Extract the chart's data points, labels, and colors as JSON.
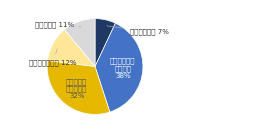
{
  "slices": [
    {
      "label": "把握している 7%",
      "value": 7,
      "color": "#1f3864"
    },
    {
      "label": "だいたい把握\nしている\n38%",
      "value": 38,
      "color": "#4472c4"
    },
    {
      "label": "あまり把握\nしていない\n32%",
      "value": 32,
      "color": "#e6b800"
    },
    {
      "label": "把握していない 12%",
      "value": 12,
      "color": "#ffe699"
    },
    {
      "label": "わからない 11%",
      "value": 11,
      "color": "#d9d9d9"
    }
  ],
  "background_color": "#ffffff",
  "startangle": 90,
  "figsize": [
    2.64,
    1.33
  ],
  "dpi": 100,
  "font_family": "Hiragino Sans",
  "font_fallbacks": [
    "Hiragino Kaku Gothic Pro",
    "Yu Gothic",
    "Noto Sans CJK JP",
    "IPAexGothic",
    "MS Gothic",
    "DejaVu Sans"
  ]
}
